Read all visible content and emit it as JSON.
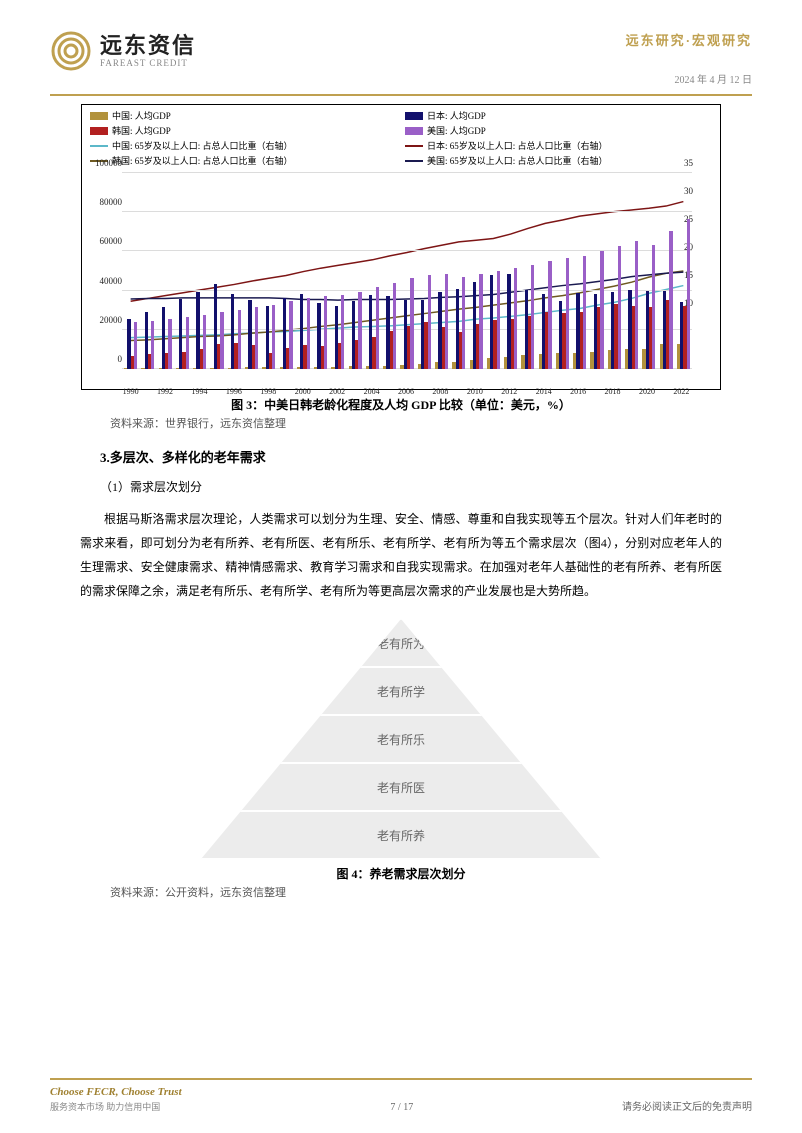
{
  "header": {
    "company_cn": "远东资信",
    "company_en": "FAREAST CREDIT",
    "breadcrumb": "远东研究·宏观研究",
    "date": "2024 年 4 月 12 日"
  },
  "chart": {
    "type": "bar+line",
    "background_color": "#ffffff",
    "border_color": "#000000",
    "grid_color": "#dcdcdc",
    "x_years": [
      1990,
      1991,
      1992,
      1993,
      1994,
      1995,
      1996,
      1997,
      1998,
      1999,
      2000,
      2001,
      2002,
      2003,
      2004,
      2005,
      2006,
      2007,
      2008,
      2009,
      2010,
      2011,
      2012,
      2013,
      2014,
      2015,
      2016,
      2017,
      2018,
      2019,
      2020,
      2021,
      2022
    ],
    "x_tick_step": 2,
    "y_left_ticks": [
      0,
      20000,
      40000,
      60000,
      80000,
      100000
    ],
    "y_left_lim": [
      0,
      100000
    ],
    "y_right_ticks": [
      0,
      5,
      10,
      15,
      20,
      25,
      30,
      35
    ],
    "y_right_lim": [
      0,
      35
    ],
    "label_fontsize": 9,
    "bars": [
      {
        "name": "中国: 人均GDP",
        "color": "#b2923c",
        "values": [
          350,
          360,
          420,
          530,
          470,
          610,
          710,
          780,
          830,
          870,
          960,
          1050,
          1150,
          1290,
          1510,
          1760,
          2100,
          2700,
          3470,
          3830,
          4550,
          5610,
          6300,
          7050,
          7680,
          8070,
          8150,
          8820,
          9910,
          10150,
          10410,
          12560,
          12720
        ]
      },
      {
        "name": "日本: 人均GDP",
        "color": "#12106c",
        "values": [
          25400,
          28900,
          31400,
          35700,
          39200,
          43400,
          38400,
          35000,
          31900,
          36000,
          38500,
          33800,
          32300,
          34800,
          37700,
          37200,
          35400,
          35300,
          39300,
          40900,
          44500,
          48200,
          48600,
          40500,
          38100,
          34500,
          38800,
          38400,
          39200,
          40100,
          39900,
          39800,
          34000
        ]
      },
      {
        "name": "韩国: 人均GDP",
        "color": "#b22020",
        "values": [
          6600,
          7600,
          8100,
          8900,
          10400,
          12600,
          13400,
          12400,
          8300,
          10700,
          12300,
          11600,
          13200,
          14700,
          16500,
          19400,
          21700,
          24100,
          21400,
          19100,
          23100,
          25100,
          25500,
          27200,
          29300,
          28700,
          29300,
          31600,
          33400,
          31900,
          31700,
          35000,
          32400
        ]
      },
      {
        "name": "美国: 人均GDP",
        "color": "#9a5fc7",
        "values": [
          23900,
          24400,
          25500,
          26500,
          27800,
          29000,
          30100,
          31600,
          32900,
          34600,
          36300,
          37100,
          37900,
          39500,
          41700,
          44100,
          46300,
          48000,
          48400,
          47100,
          48500,
          49900,
          51600,
          53100,
          55100,
          56800,
          57900,
          60000,
          62800,
          65100,
          63500,
          70200,
          76400
        ]
      }
    ],
    "lines": [
      {
        "name": "中国: 65岁及以上人口: 占总人口比重（右轴）",
        "color": "#5cb8c9",
        "values": [
          5.6,
          5.7,
          5.8,
          5.9,
          6.0,
          6.1,
          6.3,
          6.4,
          6.6,
          6.7,
          6.9,
          7.1,
          7.3,
          7.5,
          7.6,
          7.7,
          7.9,
          8.1,
          8.3,
          8.5,
          8.9,
          9.1,
          9.4,
          9.7,
          10.1,
          10.5,
          10.8,
          11.4,
          11.9,
          12.6,
          13.5,
          14.2,
          14.9
        ]
      },
      {
        "name": "日本: 65岁及以上人口: 占总人口比重（右轴）",
        "color": "#7d1515",
        "values": [
          12.1,
          12.6,
          13.1,
          13.6,
          14.1,
          14.6,
          15.1,
          15.7,
          16.2,
          16.7,
          17.4,
          18.0,
          18.5,
          19.0,
          19.5,
          20.2,
          20.8,
          21.5,
          22.1,
          22.7,
          23.0,
          23.3,
          24.1,
          25.1,
          26.0,
          26.6,
          27.3,
          27.7,
          28.1,
          28.4,
          28.7,
          29.1,
          29.9
        ]
      },
      {
        "name": "韩国: 65岁及以上人口: 占总人口比重（右轴）",
        "color": "#6e5920",
        "values": [
          5.1,
          5.2,
          5.4,
          5.6,
          5.8,
          5.9,
          6.1,
          6.4,
          6.6,
          6.9,
          7.2,
          7.6,
          7.9,
          8.3,
          8.7,
          9.1,
          9.5,
          9.9,
          10.3,
          10.7,
          11.0,
          11.4,
          11.8,
          12.2,
          12.7,
          13.1,
          13.6,
          14.2,
          14.8,
          15.5,
          16.4,
          17.1,
          17.5
        ]
      },
      {
        "name": "美国: 65岁及以上人口: 占总人口比重（右轴）",
        "color": "#1a1a50",
        "values": [
          12.5,
          12.6,
          12.6,
          12.7,
          12.7,
          12.7,
          12.7,
          12.7,
          12.7,
          12.6,
          12.4,
          12.4,
          12.3,
          12.4,
          12.4,
          12.4,
          12.5,
          12.6,
          12.8,
          12.9,
          13.1,
          13.3,
          13.7,
          14.1,
          14.5,
          14.9,
          15.2,
          15.6,
          16.0,
          16.5,
          16.8,
          17.1,
          17.3
        ]
      }
    ],
    "legend_labels": {
      "cn_gdp": "中国: 人均GDP",
      "jp_gdp": "日本: 人均GDP",
      "kr_gdp": "韩国: 人均GDP",
      "us_gdp": "美国: 人均GDP",
      "cn_age": "中国: 65岁及以上人口: 占总人口比重（右轴）",
      "jp_age": "日本: 65岁及以上人口: 占总人口比重（右轴）",
      "kr_age": "韩国: 65岁及以上人口: 占总人口比重（右轴）",
      "us_age": "美国: 65岁及以上人口: 占总人口比重（右轴）"
    },
    "caption": "图 3：中美日韩老龄化程度及人均 GDP 比较（单位：美元，%）",
    "source": "资料来源：世界银行，远东资信整理"
  },
  "section": {
    "title": "3.多层次、多样化的老年需求",
    "sub1": "（1）需求层次划分",
    "para1": "根据马斯洛需求层次理论，人类需求可以划分为生理、安全、情感、尊重和自我实现等五个层次。针对人们年老时的需求来看，即可划分为老有所养、老有所医、老有所乐、老有所学、老有所为等五个需求层次（图4），分别对应老年人的生理需求、安全健康需求、精神情感需求、教育学习需求和自我实现需求。在加强对老年人基础性的老有所养、老有所医的需求保障之余，满足老有所乐、老有所学、老有所为等更高层次需求的产业发展也是大势所趋。"
  },
  "pyramid": {
    "type": "pyramid",
    "bg_color": "#ececec",
    "text_color": "#666666",
    "levels": [
      "老有所为",
      "老有所学",
      "老有所乐",
      "老有所医",
      "老有所养"
    ],
    "caption": "图 4：养老需求层次划分",
    "source": "资料来源：公开资料，远东资信整理"
  },
  "footer": {
    "slogan_en": "Choose FECR, Choose Trust",
    "slogan_cn": "服务资本市场  助力信用中国",
    "page": "7 / 17",
    "disclaimer": "请务必阅读正文后的免责声明"
  },
  "colors": {
    "accent": "#bfa050"
  }
}
